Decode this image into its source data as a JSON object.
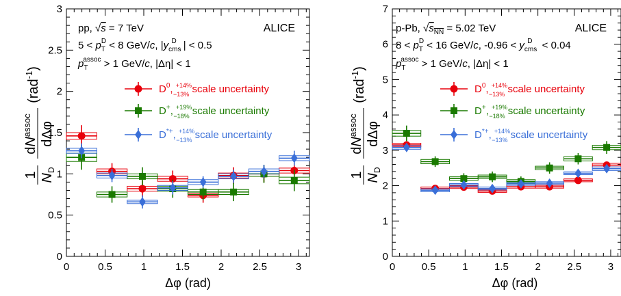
{
  "colors": {
    "D0": "#e8000b",
    "Dplus": "#1a7a00",
    "Dstar": "#3a6fd8"
  },
  "chart_data": [
    {
      "type": "scatter",
      "system": "pp",
      "xlabel": "Δφ (rad)",
      "ylabel": "(1/N_D) dN^assoc/dΔφ (rad^-1)",
      "xlim": [
        0,
        3.1416
      ],
      "ylim": [
        0,
        3
      ],
      "xticks": [
        "0",
        "0.5",
        "1",
        "1.5",
        "2",
        "2.5",
        "3"
      ],
      "yticks": [
        "0",
        "0.5",
        "1",
        "1.5",
        "2",
        "2.5",
        "3"
      ],
      "text": {
        "line1": "pp, √s = 7 TeV",
        "line2": "5 < p_T^D < 8 GeV/c, |y_cms^D| < 0.5",
        "line3": "p_T^assoc > 1 GeV/c, |Δη| < 1",
        "logo": "ALICE"
      },
      "legend": [
        {
          "series": "D0",
          "label": "D⁰, ⁺¹⁴%₋₁₃% scale uncertainty"
        },
        {
          "series": "Dplus",
          "label": "D⁺, ⁺¹⁹%₋₁₈% scale uncertainty"
        },
        {
          "series": "Dstar",
          "label": "D*⁺, ⁺¹⁴%₋₁₃% scale uncertainty"
        }
      ],
      "series": [
        {
          "name": "D0",
          "color": "#e8000b",
          "marker": "circle",
          "x": [
            0.196,
            0.589,
            0.982,
            1.374,
            1.767,
            2.16,
            2.553,
            2.945
          ],
          "y": [
            1.46,
            1.03,
            0.82,
            0.94,
            0.74,
            0.98,
            1.0,
            1.04
          ],
          "err": [
            0.13,
            0.1,
            0.1,
            0.1,
            0.09,
            0.1,
            0.1,
            0.11
          ],
          "sys": [
            0.04,
            0.03,
            0.03,
            0.03,
            0.02,
            0.03,
            0.03,
            0.03
          ]
        },
        {
          "name": "Dplus",
          "color": "#1a7a00",
          "marker": "square",
          "x": [
            0.196,
            0.589,
            0.982,
            1.374,
            1.767,
            2.16,
            2.553,
            2.945
          ],
          "y": [
            1.2,
            0.75,
            0.97,
            0.82,
            0.78,
            0.78,
            1.0,
            0.92
          ],
          "err": [
            0.15,
            0.1,
            0.11,
            0.11,
            0.1,
            0.11,
            0.11,
            0.13
          ],
          "sys": [
            0.05,
            0.03,
            0.03,
            0.03,
            0.03,
            0.03,
            0.03,
            0.04
          ]
        },
        {
          "name": "Dstar",
          "color": "#3a6fd8",
          "marker": "diamond",
          "x": [
            0.196,
            0.589,
            0.982,
            1.374,
            1.767,
            2.16,
            2.553,
            2.945
          ],
          "y": [
            1.28,
            0.98,
            0.66,
            0.83,
            0.9,
            0.97,
            1.03,
            1.19
          ],
          "err": [
            0.09,
            0.08,
            0.08,
            0.08,
            0.07,
            0.08,
            0.08,
            0.09
          ],
          "sys": [
            0.03,
            0.03,
            0.02,
            0.03,
            0.03,
            0.03,
            0.03,
            0.03
          ]
        }
      ]
    },
    {
      "type": "scatter",
      "system": "p-Pb",
      "xlabel": "Δφ (rad)",
      "ylabel": "(1/N_D) dN^assoc/dΔφ (rad^-1)",
      "xlim": [
        0,
        3.1416
      ],
      "ylim": [
        0,
        7
      ],
      "xticks": [
        "0",
        "0.5",
        "1",
        "1.5",
        "2",
        "2.5",
        "3"
      ],
      "yticks": [
        "0",
        "1",
        "2",
        "3",
        "4",
        "5",
        "6",
        "7"
      ],
      "text": {
        "line1": "p-Pb, √s_NN = 5.02 TeV",
        "line2": "8 < p_T^D < 16 GeV/c, -0.96 < y_cms^D < 0.04",
        "line3": "p_T^assoc > 1 GeV/c, |Δη| < 1",
        "logo": "ALICE"
      },
      "legend": [
        {
          "series": "D0",
          "label": "D⁰, ⁺¹⁴%₋₁₃% scale uncertainty"
        },
        {
          "series": "Dplus",
          "label": "D⁺, ⁺¹⁹%₋₁₈% scale uncertainty"
        },
        {
          "series": "Dstar",
          "label": "D*⁺, ⁺¹⁴%₋₁₃% scale uncertainty"
        }
      ],
      "series": [
        {
          "name": "D0",
          "color": "#e8000b",
          "marker": "circle",
          "x": [
            0.196,
            0.589,
            0.982,
            1.374,
            1.767,
            2.16,
            2.553,
            2.945
          ],
          "y": [
            3.15,
            1.92,
            1.96,
            1.85,
            1.97,
            1.97,
            2.15,
            2.58
          ],
          "err": [
            0.1,
            0.08,
            0.08,
            0.08,
            0.08,
            0.08,
            0.08,
            0.1
          ],
          "sys": [
            0.05,
            0.04,
            0.04,
            0.04,
            0.04,
            0.04,
            0.04,
            0.05
          ]
        },
        {
          "name": "Dplus",
          "color": "#1a7a00",
          "marker": "square",
          "x": [
            0.196,
            0.589,
            0.982,
            1.374,
            1.767,
            2.16,
            2.553,
            2.945
          ],
          "y": [
            3.48,
            2.68,
            2.2,
            2.25,
            2.12,
            2.5,
            2.76,
            3.08
          ],
          "err": [
            0.22,
            0.15,
            0.15,
            0.15,
            0.14,
            0.16,
            0.16,
            0.18
          ],
          "sys": [
            0.08,
            0.06,
            0.05,
            0.05,
            0.05,
            0.05,
            0.06,
            0.06
          ]
        },
        {
          "name": "Dstar",
          "color": "#3a6fd8",
          "marker": "diamond",
          "x": [
            0.196,
            0.589,
            0.982,
            1.374,
            1.767,
            2.16,
            2.553,
            2.945
          ],
          "y": [
            3.08,
            1.87,
            2.02,
            1.92,
            2.05,
            2.07,
            2.35,
            2.48
          ],
          "err": [
            0.07,
            0.06,
            0.06,
            0.06,
            0.06,
            0.06,
            0.07,
            0.07
          ],
          "sys": [
            0.05,
            0.04,
            0.04,
            0.04,
            0.04,
            0.04,
            0.04,
            0.05
          ]
        }
      ]
    }
  ]
}
